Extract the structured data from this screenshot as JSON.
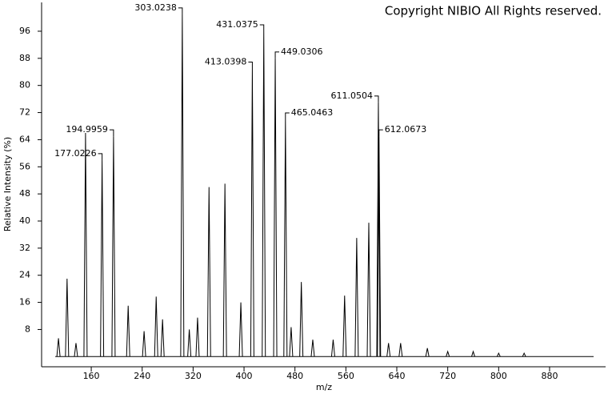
{
  "chart_data": {
    "type": "spectrum",
    "copyright": "Copyright NIBIO All Rights reserved.",
    "x_label": "m/z",
    "y_label": "Relative Intensity (%)",
    "x": [
      108.5,
      122,
      136,
      151,
      177.0226,
      194.9959,
      218,
      243,
      262,
      272,
      303.0238,
      314,
      327,
      345,
      370,
      395,
      413.0398,
      431.0375,
      449.0306,
      465.0463,
      474,
      490,
      508,
      540,
      558,
      577,
      596,
      611.0504,
      612.0673,
      627,
      646,
      688,
      720,
      760,
      800,
      840
    ],
    "values": [
      5.4,
      23,
      4,
      66,
      58,
      65,
      15,
      7.5,
      17.7,
      11,
      101,
      8,
      11.5,
      50,
      51,
      16,
      85,
      96,
      88,
      70,
      8.7,
      22,
      5,
      5,
      18,
      35,
      39.5,
      75,
      65,
      4,
      4,
      2.5,
      1.5,
      1.5,
      1,
      1
    ],
    "labels": [
      null,
      null,
      null,
      null,
      "177.0226",
      "194.9959",
      null,
      null,
      null,
      null,
      "303.0238",
      null,
      null,
      null,
      null,
      null,
      "413.0398",
      "431.0375",
      "449.0306",
      "465.0463",
      null,
      null,
      null,
      null,
      null,
      null,
      null,
      "611.0504",
      "612.0673",
      null,
      null,
      null,
      null,
      null,
      null,
      null
    ],
    "color": "#000000",
    "xlim": [
      82,
      968
    ],
    "xticks": [
      160,
      240,
      320,
      400,
      480,
      560,
      640,
      720,
      800,
      880
    ],
    "ylim": [
      -3,
      104.5
    ],
    "yticks": [
      8,
      16,
      24,
      32,
      40,
      48,
      56,
      64,
      72,
      80,
      88,
      96
    ]
  }
}
